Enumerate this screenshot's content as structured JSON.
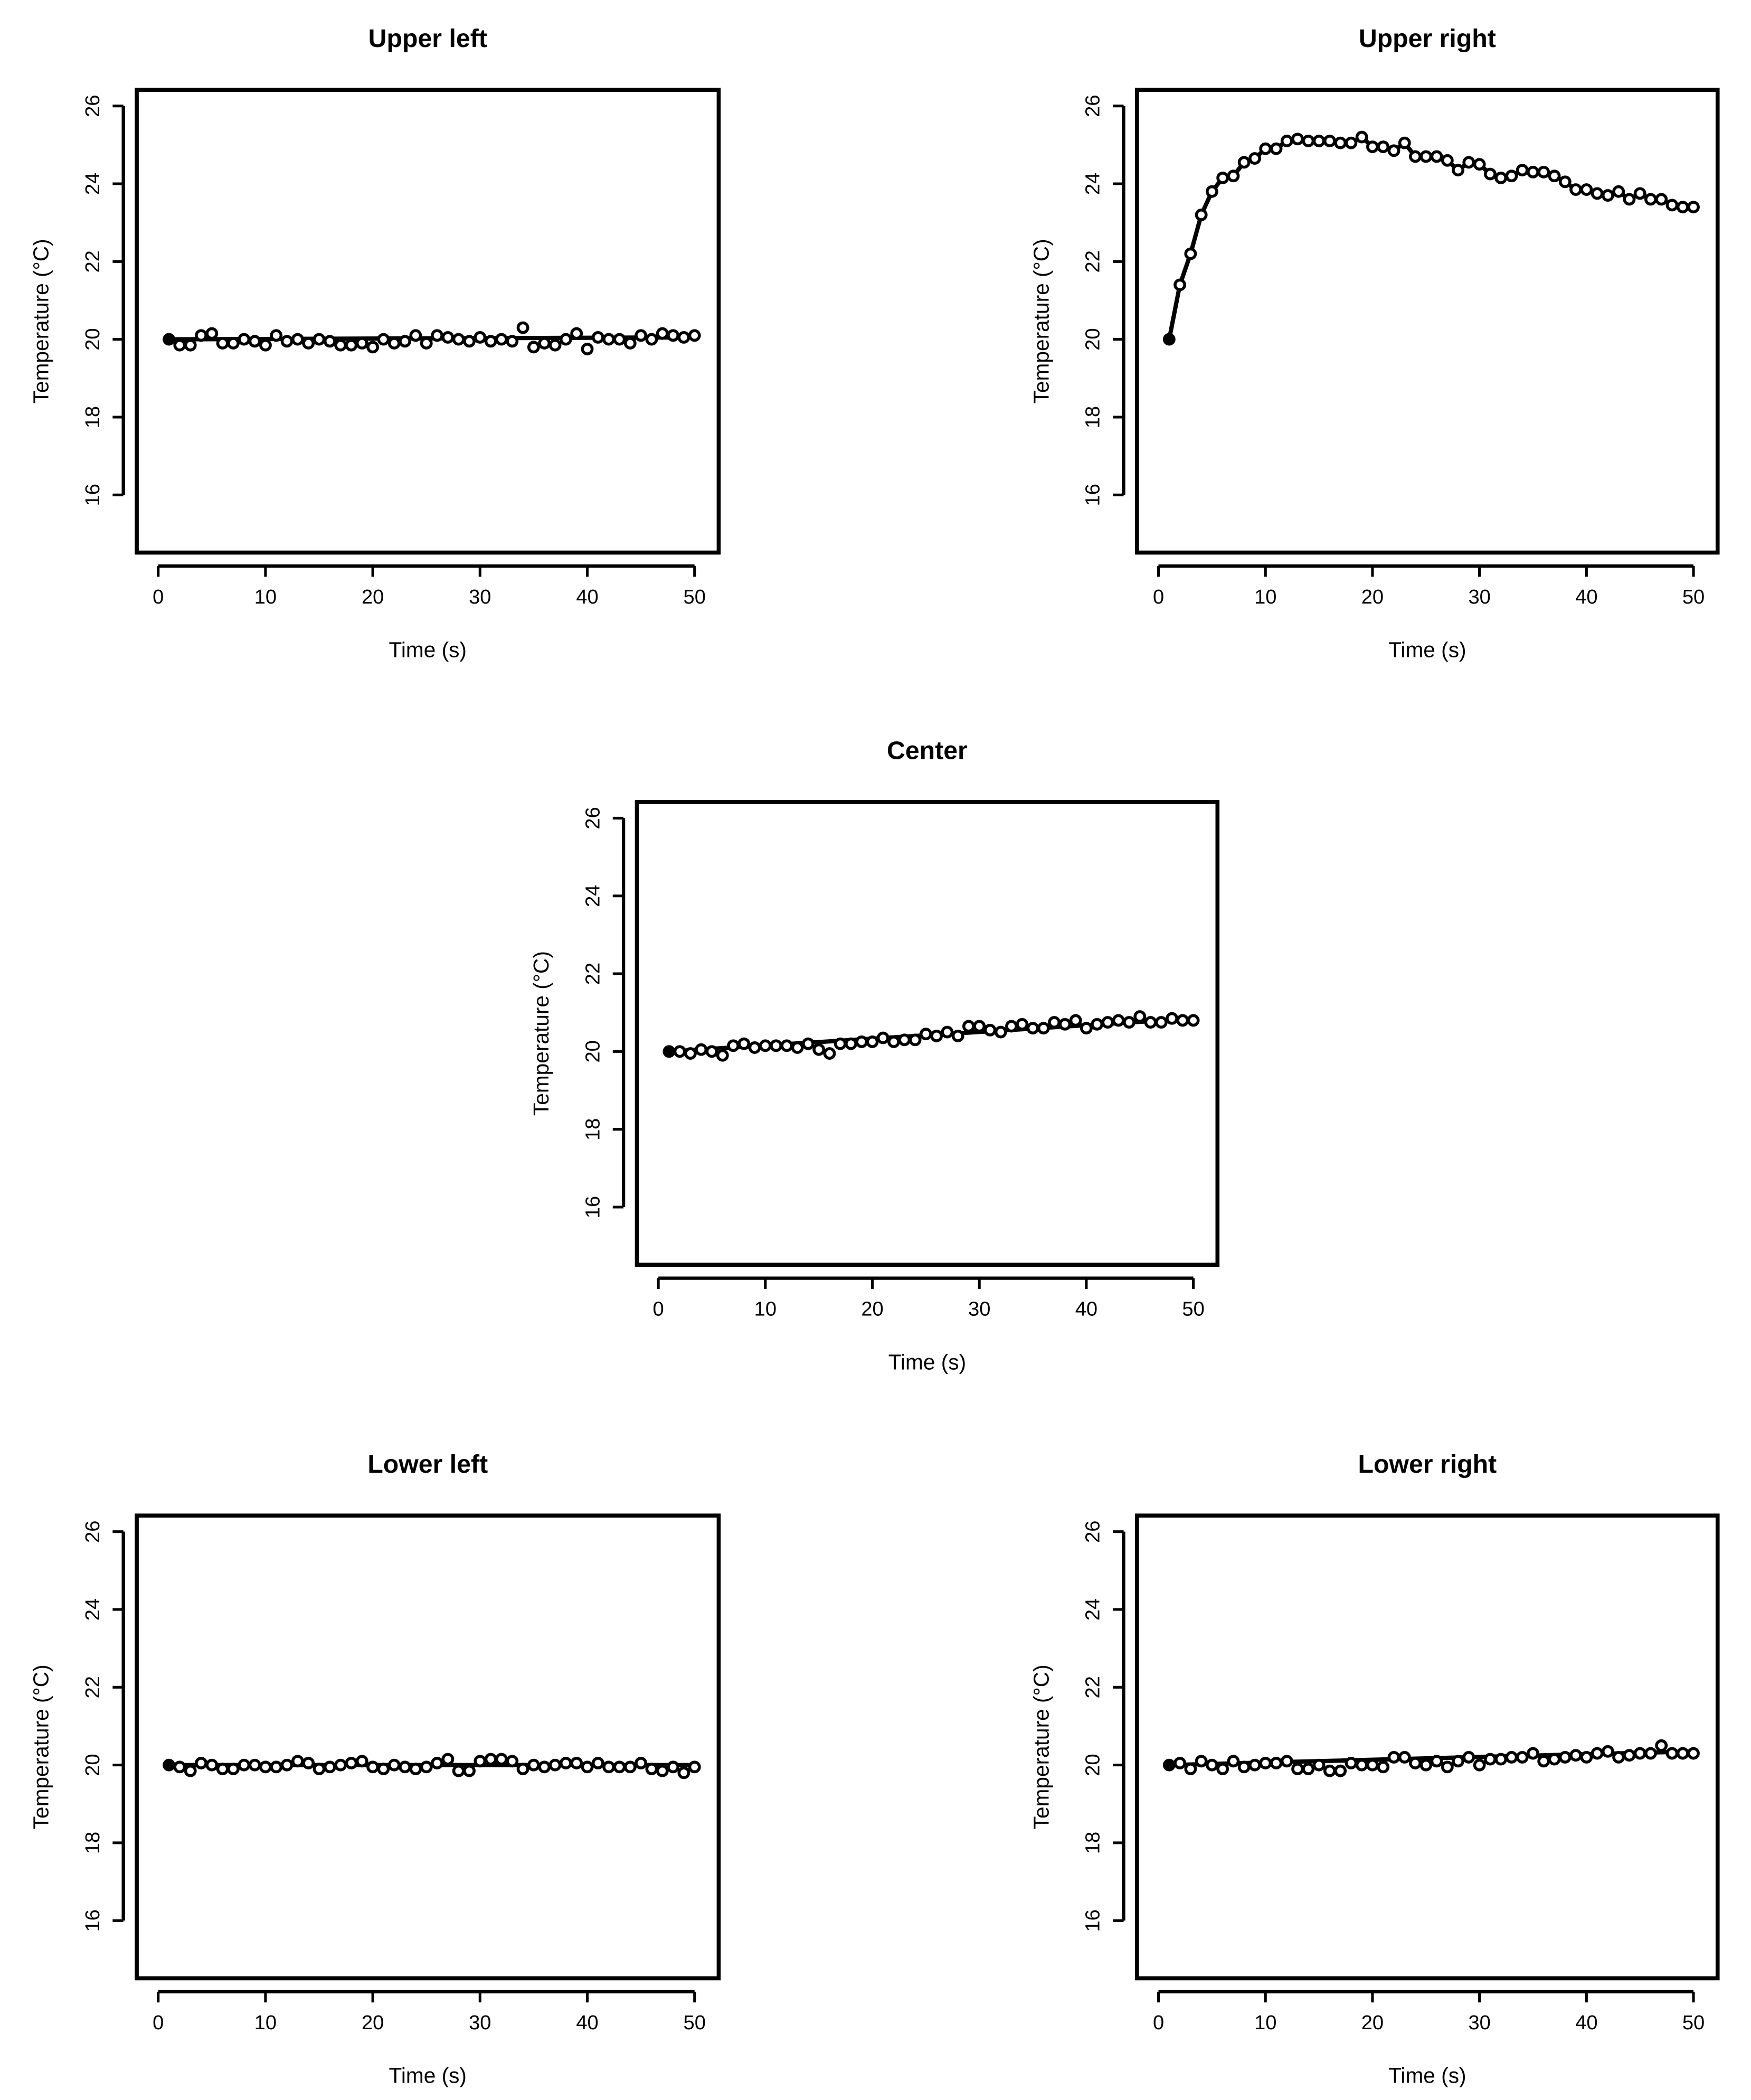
{
  "chart_data": [
    {
      "id": "upper-left",
      "type": "line",
      "title": "Upper left",
      "xlabel": "Time (s)",
      "ylabel": "Temperature (°C)",
      "xlim": [
        0,
        50
      ],
      "ylim": [
        16,
        26
      ],
      "xticks": [
        "0",
        "10",
        "20",
        "30",
        "40",
        "50"
      ],
      "yticks": [
        "16",
        "18",
        "20",
        "22",
        "24",
        "26"
      ],
      "grid": false,
      "legend": "none",
      "series": [
        {
          "x": [
            1,
            2,
            3,
            4,
            5,
            6,
            7,
            8,
            9,
            10,
            11,
            12,
            13,
            14,
            15,
            16,
            17,
            18,
            19,
            20,
            21,
            22,
            23,
            24,
            25,
            26,
            27,
            28,
            29,
            30,
            31,
            32,
            33,
            34,
            35,
            36,
            37,
            38,
            39,
            40,
            41,
            42,
            43,
            44,
            45,
            46,
            47,
            48,
            49,
            50
          ],
          "values": [
            20.0,
            19.85,
            19.85,
            20.1,
            20.15,
            19.9,
            19.9,
            20.0,
            19.95,
            19.85,
            20.1,
            19.95,
            20.0,
            19.9,
            20.0,
            19.95,
            19.85,
            19.85,
            19.9,
            19.8,
            20.0,
            19.9,
            19.95,
            20.1,
            19.9,
            20.1,
            20.05,
            20.0,
            19.95,
            20.05,
            19.95,
            20.0,
            19.95,
            20.3,
            19.8,
            19.9,
            19.85,
            20.0,
            20.15,
            19.75,
            20.05,
            20.0,
            20.0,
            19.9,
            20.1,
            20.0,
            20.15,
            20.1,
            20.05,
            20.1
          ],
          "fit": [
            20.0,
            20.05
          ]
        }
      ]
    },
    {
      "id": "upper-right",
      "type": "line",
      "title": "Upper right",
      "xlabel": "Time (s)",
      "ylabel": "Temperature (°C)",
      "xlim": [
        0,
        50
      ],
      "ylim": [
        16,
        26
      ],
      "xticks": [
        "0",
        "10",
        "20",
        "30",
        "40",
        "50"
      ],
      "yticks": [
        "16",
        "18",
        "20",
        "22",
        "24",
        "26"
      ],
      "grid": false,
      "legend": "none",
      "series": [
        {
          "x": [
            1,
            2,
            3,
            4,
            5,
            6,
            7,
            8,
            9,
            10,
            11,
            12,
            13,
            14,
            15,
            16,
            17,
            18,
            19,
            20,
            21,
            22,
            23,
            24,
            25,
            26,
            27,
            28,
            29,
            30,
            31,
            32,
            33,
            34,
            35,
            36,
            37,
            38,
            39,
            40,
            41,
            42,
            43,
            44,
            45,
            46,
            47,
            48,
            49,
            50
          ],
          "values": [
            20.0,
            21.4,
            22.2,
            23.2,
            23.8,
            24.15,
            24.2,
            24.55,
            24.65,
            24.9,
            24.9,
            25.1,
            25.15,
            25.1,
            25.1,
            25.1,
            25.05,
            25.05,
            25.2,
            24.95,
            24.95,
            24.85,
            25.05,
            24.7,
            24.7,
            24.7,
            24.6,
            24.35,
            24.55,
            24.5,
            24.25,
            24.15,
            24.2,
            24.35,
            24.3,
            24.3,
            24.2,
            24.05,
            23.85,
            23.85,
            23.75,
            23.7,
            23.8,
            23.6,
            23.75,
            23.6,
            23.6,
            23.45,
            23.4,
            23.4
          ]
        }
      ]
    },
    {
      "id": "center",
      "type": "line",
      "title": "Center",
      "xlabel": "Time (s)",
      "ylabel": "Temperature (°C)",
      "xlim": [
        0,
        50
      ],
      "ylim": [
        16,
        26
      ],
      "xticks": [
        "0",
        "10",
        "20",
        "30",
        "40",
        "50"
      ],
      "yticks": [
        "16",
        "18",
        "20",
        "22",
        "24",
        "26"
      ],
      "grid": false,
      "legend": "none",
      "series": [
        {
          "x": [
            1,
            2,
            3,
            4,
            5,
            6,
            7,
            8,
            9,
            10,
            11,
            12,
            13,
            14,
            15,
            16,
            17,
            18,
            19,
            20,
            21,
            22,
            23,
            24,
            25,
            26,
            27,
            28,
            29,
            30,
            31,
            32,
            33,
            34,
            35,
            36,
            37,
            38,
            39,
            40,
            41,
            42,
            43,
            44,
            45,
            46,
            47,
            48,
            49,
            50
          ],
          "values": [
            20.0,
            20.0,
            19.95,
            20.05,
            20.0,
            19.9,
            20.15,
            20.2,
            20.1,
            20.15,
            20.15,
            20.15,
            20.1,
            20.2,
            20.05,
            19.95,
            20.2,
            20.2,
            20.25,
            20.25,
            20.35,
            20.25,
            20.3,
            20.3,
            20.45,
            20.4,
            20.5,
            20.4,
            20.65,
            20.65,
            20.55,
            20.5,
            20.65,
            20.7,
            20.6,
            20.6,
            20.75,
            20.7,
            20.8,
            20.6,
            20.7,
            20.75,
            20.8,
            20.75,
            20.9,
            20.75,
            20.75,
            20.85,
            20.8,
            20.8
          ],
          "fit": [
            20.0,
            20.85
          ]
        }
      ]
    },
    {
      "id": "lower-left",
      "type": "line",
      "title": "Lower left",
      "xlabel": "Time (s)",
      "ylabel": "Temperature (°C)",
      "xlim": [
        0,
        50
      ],
      "ylim": [
        16,
        26
      ],
      "xticks": [
        "0",
        "10",
        "20",
        "30",
        "40",
        "50"
      ],
      "yticks": [
        "16",
        "18",
        "20",
        "22",
        "24",
        "26"
      ],
      "grid": false,
      "legend": "none",
      "series": [
        {
          "x": [
            1,
            2,
            3,
            4,
            5,
            6,
            7,
            8,
            9,
            10,
            11,
            12,
            13,
            14,
            15,
            16,
            17,
            18,
            19,
            20,
            21,
            22,
            23,
            24,
            25,
            26,
            27,
            28,
            29,
            30,
            31,
            32,
            33,
            34,
            35,
            36,
            37,
            38,
            39,
            40,
            41,
            42,
            43,
            44,
            45,
            46,
            47,
            48,
            49,
            50
          ],
          "values": [
            20.0,
            19.95,
            19.85,
            20.05,
            20.0,
            19.9,
            19.9,
            20.0,
            20.0,
            19.95,
            19.95,
            20.0,
            20.1,
            20.05,
            19.9,
            19.95,
            20.0,
            20.05,
            20.1,
            19.95,
            19.9,
            20.0,
            19.95,
            19.9,
            19.95,
            20.05,
            20.15,
            19.85,
            19.85,
            20.1,
            20.15,
            20.15,
            20.1,
            19.9,
            20.0,
            19.95,
            20.0,
            20.05,
            20.05,
            19.95,
            20.05,
            19.95,
            19.95,
            19.95,
            20.05,
            19.9,
            19.85,
            19.95,
            19.8,
            19.95
          ],
          "fit": [
            20.0,
            20.0
          ]
        }
      ]
    },
    {
      "id": "lower-right",
      "type": "line",
      "title": "Lower right",
      "xlabel": "Time (s)",
      "ylabel": "Temperature (°C)",
      "xlim": [
        0,
        50
      ],
      "ylim": [
        16,
        26
      ],
      "xticks": [
        "0",
        "10",
        "20",
        "30",
        "40",
        "50"
      ],
      "yticks": [
        "16",
        "18",
        "20",
        "22",
        "24",
        "26"
      ],
      "grid": false,
      "legend": "none",
      "series": [
        {
          "x": [
            1,
            2,
            3,
            4,
            5,
            6,
            7,
            8,
            9,
            10,
            11,
            12,
            13,
            14,
            15,
            16,
            17,
            18,
            19,
            20,
            21,
            22,
            23,
            24,
            25,
            26,
            27,
            28,
            29,
            30,
            31,
            32,
            33,
            34,
            35,
            36,
            37,
            38,
            39,
            40,
            41,
            42,
            43,
            44,
            45,
            46,
            47,
            48,
            49,
            50
          ],
          "values": [
            20.0,
            20.05,
            19.9,
            20.1,
            20.0,
            19.9,
            20.1,
            19.95,
            20.0,
            20.05,
            20.05,
            20.1,
            19.9,
            19.9,
            20.0,
            19.85,
            19.85,
            20.05,
            20.0,
            20.0,
            19.95,
            20.2,
            20.2,
            20.05,
            20.0,
            20.1,
            19.95,
            20.1,
            20.2,
            20.0,
            20.15,
            20.15,
            20.2,
            20.2,
            20.3,
            20.1,
            20.15,
            20.2,
            20.25,
            20.2,
            20.3,
            20.35,
            20.2,
            20.25,
            20.3,
            20.3,
            20.5,
            20.3,
            20.3,
            20.3
          ],
          "fit": [
            20.0,
            20.35
          ]
        }
      ]
    }
  ]
}
